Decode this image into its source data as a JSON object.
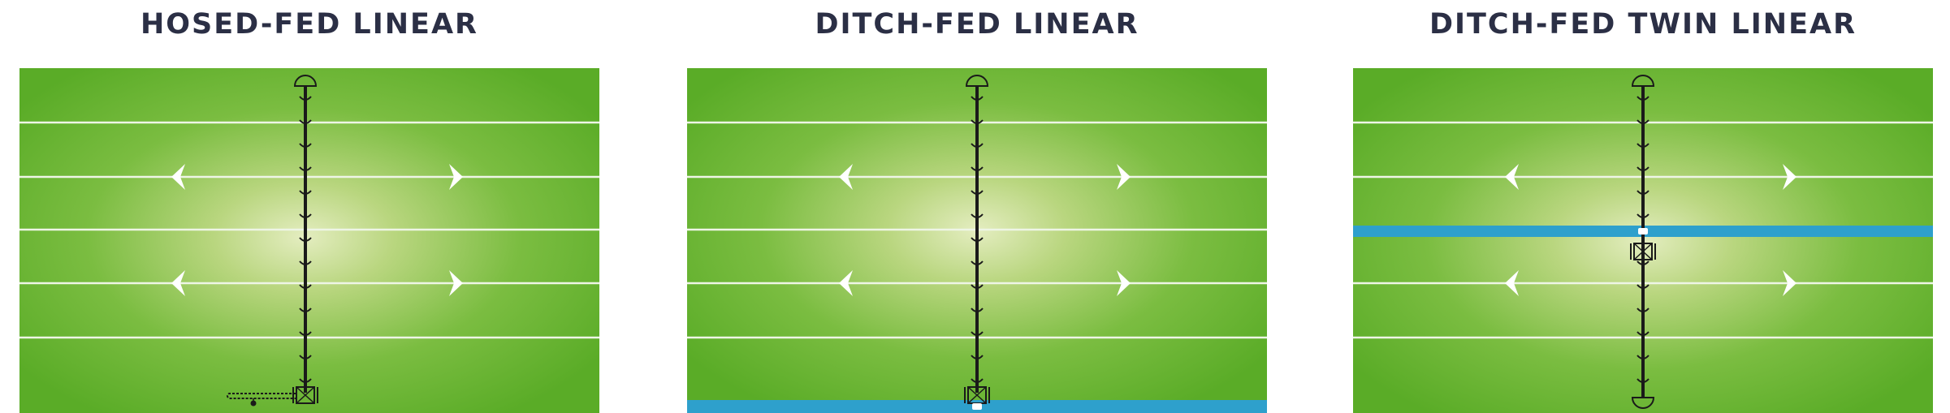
{
  "panels": [
    {
      "id": "hosed-fed-linear",
      "title": "HOSED-FED LINEAR"
    },
    {
      "id": "ditch-fed-linear",
      "title": "DITCH-FED LINEAR"
    },
    {
      "id": "ditch-fed-twin-linear",
      "title": "DITCH-FED TWIN LINEAR"
    }
  ],
  "colors": {
    "field_edge": "#5aac27",
    "field_center": "#e4edc0",
    "row_line": "#eef5e6",
    "water": "#2ea0cc",
    "arrow": "#ffffff",
    "pipe": "#1a1a1a",
    "title": "#2b2f45"
  },
  "icons": [
    "end-cap-icon",
    "drive-cart-icon",
    "water-inlet-icon",
    "hose-icon",
    "direction-arrow-icon"
  ]
}
